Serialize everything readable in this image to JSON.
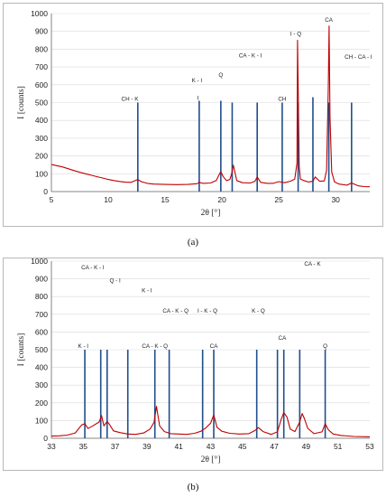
{
  "chart_data": [
    {
      "type": "line",
      "panel_label": "(a)",
      "xlabel": "2θ [°]",
      "ylabel": "I [counts]",
      "xlim": [
        5,
        33
      ],
      "ylim": [
        0,
        1000
      ],
      "xticks": [
        5,
        10,
        15,
        20,
        25,
        30
      ],
      "yticks": [
        0,
        100,
        200,
        300,
        400,
        500,
        600,
        700,
        800,
        900,
        1000
      ],
      "grid": true,
      "series": [
        {
          "color": "#c00000",
          "x": [
            5,
            5.5,
            6,
            6.5,
            7,
            7.5,
            8,
            8.5,
            9,
            9.5,
            10,
            10.5,
            11,
            11.5,
            12,
            12.3,
            12.6,
            12.9,
            13.5,
            14,
            15,
            16,
            17,
            17.8,
            18,
            18.3,
            19,
            19.5,
            19.75,
            19.9,
            20.1,
            20.4,
            20.7,
            20.85,
            21.0,
            21.3,
            21.8,
            22.5,
            22.9,
            23.1,
            23.4,
            24,
            24.5,
            25,
            25.5,
            26,
            26.4,
            26.6,
            26.65,
            26.72,
            26.8,
            26.9,
            27.2,
            27.6,
            28,
            28.2,
            28.6,
            29,
            29.2,
            29.35,
            29.42,
            29.5,
            29.65,
            29.9,
            30.3,
            31,
            31.4,
            32,
            32.5,
            33
          ],
          "y": [
            152,
            145,
            138,
            128,
            118,
            108,
            100,
            92,
            84,
            76,
            68,
            62,
            57,
            53,
            52,
            60,
            68,
            56,
            45,
            42,
            40,
            39,
            40,
            44,
            52,
            46,
            48,
            62,
            95,
            112,
            85,
            62,
            68,
            100,
            148,
            62,
            50,
            48,
            58,
            82,
            52,
            46,
            46,
            56,
            50,
            58,
            70,
            160,
            850,
            520,
            140,
            70,
            62,
            54,
            58,
            82,
            58,
            60,
            120,
            580,
            930,
            420,
            110,
            55,
            42,
            36,
            48,
            32,
            28,
            27
          ]
        }
      ],
      "reference_lines": [
        {
          "x": 12.6,
          "height": 500
        },
        {
          "x": 18.0,
          "height": 510
        },
        {
          "x": 19.9,
          "height": 510
        },
        {
          "x": 20.9,
          "height": 500
        },
        {
          "x": 23.1,
          "height": 500
        },
        {
          "x": 25.3,
          "height": 500
        },
        {
          "x": 26.7,
          "height": 500
        },
        {
          "x": 28.0,
          "height": 530
        },
        {
          "x": 29.4,
          "height": 500
        },
        {
          "x": 31.4,
          "height": 500
        }
      ],
      "annotations": [
        {
          "text": "CH - K",
          "x": 11.9,
          "y": 510
        },
        {
          "text": "I",
          "x": 17.9,
          "y": 515
        },
        {
          "text": "CH",
          "x": 25.3,
          "y": 510
        },
        {
          "text": "K - I",
          "x": 17.8,
          "y": 615
        },
        {
          "text": "Q",
          "x": 19.9,
          "y": 645
        },
        {
          "text": "CA - K - I",
          "x": 22.5,
          "y": 755
        },
        {
          "text": "I - Q",
          "x": 26.5,
          "y": 875
        },
        {
          "text": "CA",
          "x": 29.4,
          "y": 955
        },
        {
          "text": "CH - CA - I",
          "x": 32.0,
          "y": 745
        }
      ]
    },
    {
      "type": "line",
      "panel_label": "(b)",
      "xlabel": "2θ [°]",
      "ylabel": "I [counts]",
      "xlim": [
        33,
        53
      ],
      "ylim": [
        0,
        1000
      ],
      "xticks": [
        33,
        35,
        37,
        39,
        41,
        43,
        45,
        47,
        49,
        51,
        53
      ],
      "yticks": [
        0,
        100,
        200,
        300,
        400,
        500,
        600,
        700,
        800,
        900,
        1000
      ],
      "grid": true,
      "series": [
        {
          "color": "#c00000",
          "x": [
            33,
            33.5,
            34,
            34.5,
            34.9,
            35.1,
            35.3,
            35.6,
            36.0,
            36.15,
            36.3,
            36.5,
            36.65,
            36.9,
            37.3,
            37.8,
            38.3,
            38.8,
            39.2,
            39.45,
            39.6,
            39.8,
            40.1,
            40.5,
            41,
            41.5,
            42,
            42.4,
            42.7,
            43.0,
            43.2,
            43.4,
            43.7,
            44.2,
            44.8,
            45.4,
            45.8,
            46.0,
            46.3,
            46.8,
            47.2,
            47.45,
            47.6,
            47.8,
            48.0,
            48.3,
            48.6,
            48.75,
            48.9,
            49.1,
            49.5,
            50,
            50.2,
            50.4,
            50.7,
            51.2,
            52,
            53
          ],
          "y": [
            12,
            14,
            18,
            30,
            75,
            82,
            55,
            70,
            92,
            128,
            70,
            95,
            78,
            42,
            32,
            24,
            22,
            30,
            52,
            90,
            180,
            70,
            38,
            26,
            24,
            22,
            28,
            40,
            58,
            85,
            132,
            62,
            40,
            28,
            24,
            26,
            44,
            60,
            38,
            22,
            36,
            110,
            145,
            120,
            52,
            38,
            92,
            140,
            110,
            56,
            26,
            36,
            82,
            48,
            24,
            16,
            10,
            8
          ]
        }
      ],
      "reference_lines": [
        {
          "x": 35.1,
          "height": 500
        },
        {
          "x": 36.1,
          "height": 500
        },
        {
          "x": 36.5,
          "height": 500
        },
        {
          "x": 37.8,
          "height": 500
        },
        {
          "x": 39.5,
          "height": 500
        },
        {
          "x": 40.4,
          "height": 500
        },
        {
          "x": 42.5,
          "height": 500
        },
        {
          "x": 43.2,
          "height": 500
        },
        {
          "x": 45.9,
          "height": 500
        },
        {
          "x": 47.2,
          "height": 500
        },
        {
          "x": 47.6,
          "height": 500
        },
        {
          "x": 48.6,
          "height": 500
        },
        {
          "x": 50.2,
          "height": 500
        }
      ],
      "annotations": [
        {
          "text": "K - I",
          "x": 35.0,
          "y": 510
        },
        {
          "text": "CA - K - I",
          "x": 35.6,
          "y": 955
        },
        {
          "text": "Q - I",
          "x": 37.0,
          "y": 880
        },
        {
          "text": "K - I",
          "x": 39.0,
          "y": 825
        },
        {
          "text": "CA - K - Q",
          "x": 39.5,
          "y": 510
        },
        {
          "text": "CA - K - Q",
          "x": 40.8,
          "y": 710
        },
        {
          "text": "I - K - Q",
          "x": 42.8,
          "y": 710
        },
        {
          "text": "CA",
          "x": 43.2,
          "y": 510
        },
        {
          "text": "K - Q",
          "x": 46.0,
          "y": 710
        },
        {
          "text": "CA",
          "x": 47.5,
          "y": 555
        },
        {
          "text": "CA - K",
          "x": 49.4,
          "y": 975
        },
        {
          "text": "Q",
          "x": 50.2,
          "y": 510
        }
      ]
    }
  ]
}
